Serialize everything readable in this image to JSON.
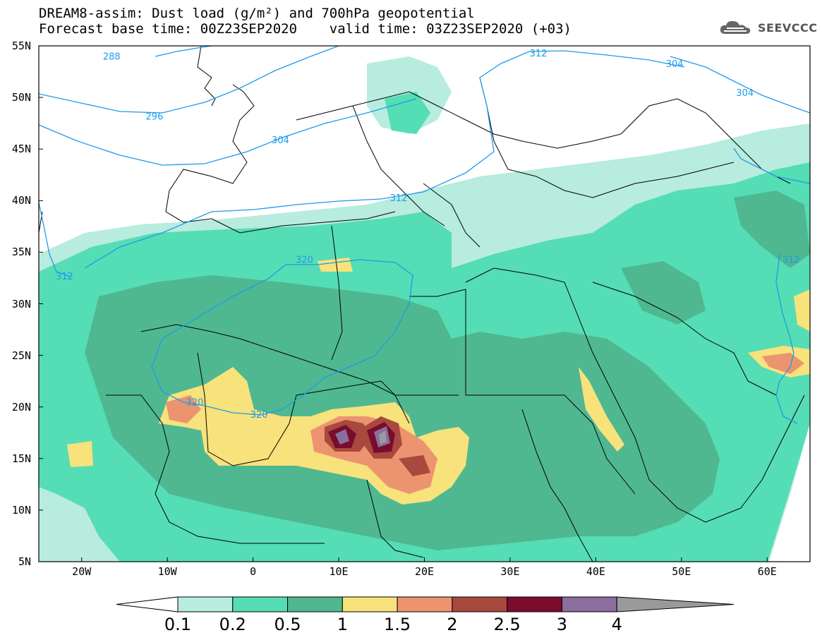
{
  "header": {
    "line1": "DREAM8-assim: Dust load (g/m²) and 700hPa geopotential",
    "line2": "Forecast base time: 00Z23SEP2020    valid time: 03Z23SEP2020 (+03)"
  },
  "logo": {
    "text": "SEEVCCC",
    "icon": "cloud-icon"
  },
  "map": {
    "lon_range": [
      -25,
      65
    ],
    "lat_range": [
      5,
      55
    ],
    "lat_ticks": [
      {
        "value": 55,
        "label": "55N"
      },
      {
        "value": 50,
        "label": "50N"
      },
      {
        "value": 45,
        "label": "45N"
      },
      {
        "value": 40,
        "label": "40N"
      },
      {
        "value": 35,
        "label": "35N"
      },
      {
        "value": 30,
        "label": "30N"
      },
      {
        "value": 25,
        "label": "25N"
      },
      {
        "value": 20,
        "label": "20N"
      },
      {
        "value": 15,
        "label": "15N"
      },
      {
        "value": 10,
        "label": "10N"
      },
      {
        "value": 5,
        "label": "5N"
      }
    ],
    "lon_ticks": [
      {
        "value": -20,
        "label": "20W"
      },
      {
        "value": -10,
        "label": "10W"
      },
      {
        "value": 0,
        "label": "0"
      },
      {
        "value": 10,
        "label": "10E"
      },
      {
        "value": 20,
        "label": "20E"
      },
      {
        "value": 30,
        "label": "30E"
      },
      {
        "value": 40,
        "label": "40E"
      },
      {
        "value": 50,
        "label": "50E"
      },
      {
        "value": 60,
        "label": "60E"
      }
    ],
    "contour_labels": [
      {
        "text": "288",
        "lon": -16.5,
        "lat": 54.0
      },
      {
        "text": "296",
        "lon": -11.5,
        "lat": 48.2
      },
      {
        "text": "304",
        "lon": 3.2,
        "lat": 45.9
      },
      {
        "text": "312",
        "lon": 17.0,
        "lat": 40.3
      },
      {
        "text": "320",
        "lon": 6.0,
        "lat": 34.3
      },
      {
        "text": "312",
        "lon": -22.0,
        "lat": 32.7
      },
      {
        "text": "320",
        "lon": -6.8,
        "lat": 20.5
      },
      {
        "text": "320",
        "lon": 0.7,
        "lat": 19.3
      },
      {
        "text": "312",
        "lon": 33.3,
        "lat": 54.3
      },
      {
        "text": "304",
        "lon": 49.2,
        "lat": 53.3
      },
      {
        "text": "304",
        "lon": 57.4,
        "lat": 50.5
      },
      {
        "text": "312",
        "lon": 62.8,
        "lat": 34.3
      }
    ]
  },
  "colorbar": {
    "levels": [
      "0.1",
      "0.2",
      "0.5",
      "1",
      "1.5",
      "2",
      "2.5",
      "3",
      "4"
    ],
    "colors": [
      "#b7ecdf",
      "#55ddb5",
      "#4fb890",
      "#f7e27c",
      "#ec9470",
      "#a9493e",
      "#7a0c2c",
      "#8a6e9e",
      "#9a9a9a"
    ],
    "under_color": "#ffffff"
  },
  "colors": {
    "contour": "#1e9be8",
    "border": "#000000"
  }
}
